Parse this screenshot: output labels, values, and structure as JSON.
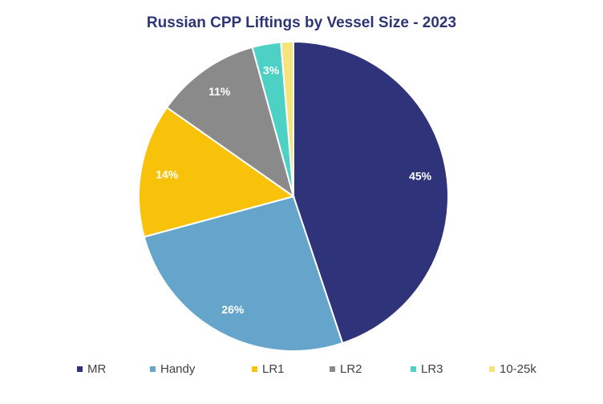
{
  "chart_data": {
    "type": "pie",
    "title": "Russian CPP Liftings by Vessel Size - 2023",
    "slices": [
      {
        "label": "MR",
        "value": 45,
        "value_label": "45%",
        "color": "#2f3379"
      },
      {
        "label": "Handy",
        "value": 26,
        "value_label": "26%",
        "color": "#66a5cb"
      },
      {
        "label": "LR1",
        "value": 14,
        "value_label": "14%",
        "color": "#f8c20b"
      },
      {
        "label": "LR2",
        "value": 11,
        "value_label": "11%",
        "color": "#8a8a8a"
      },
      {
        "label": "LR3",
        "value": 3,
        "value_label": "3%",
        "color": "#4dd1c4"
      },
      {
        "label": "10-25k",
        "value": 1.3,
        "value_label": "",
        "color": "#f4e47a"
      }
    ],
    "start_angle": "12 o'clock",
    "direction": "clockwise",
    "legend_position": "bottom"
  }
}
